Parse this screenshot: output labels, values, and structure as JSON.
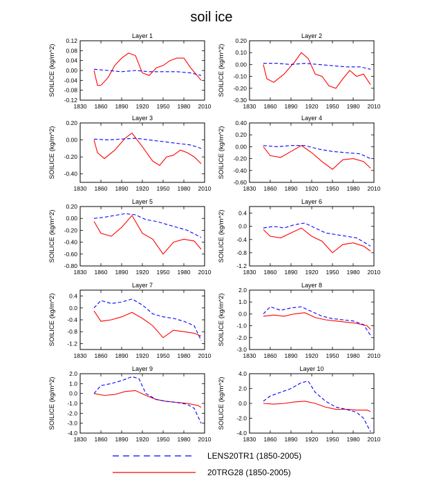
{
  "chart_data": {
    "type": "line",
    "title": "soil ice",
    "xlabel": "",
    "ylabel": "SOILICE  (kg/m^2)",
    "xlim": [
      1830,
      2010
    ],
    "xticks": [
      1830,
      1860,
      1890,
      1920,
      1950,
      1980,
      2010
    ],
    "legend": {
      "placement": "bottom",
      "entries": [
        {
          "name": "LENS20TR1 (1850-2005)",
          "color": "#0000ff",
          "style": "dashed"
        },
        {
          "name": "20TRG28 (1850-2005)",
          "color": "#ff0000",
          "style": "solid"
        }
      ]
    },
    "panels": [
      {
        "title": "Layer 1",
        "ylim": [
          -0.12,
          0.12
        ],
        "yticks": [
          "0.12",
          "0.08",
          "0.04",
          "0.00",
          "-0.04",
          "-0.08",
          "-0.12"
        ],
        "yvals": [
          0.12,
          0.08,
          0.04,
          0,
          -0.04,
          -0.08,
          -0.12
        ],
        "blue": {
          "x": [
            1850,
            1870,
            1890,
            1910,
            1930,
            1950,
            1970,
            1990,
            2005
          ],
          "y": [
            0.005,
            0,
            -0.005,
            0,
            -0.005,
            -0.005,
            -0.005,
            -0.01,
            -0.02
          ]
        },
        "red": {
          "x": [
            1850,
            1855,
            1860,
            1870,
            1880,
            1890,
            1900,
            1910,
            1920,
            1930,
            1940,
            1950,
            1960,
            1970,
            1980,
            1990,
            2005
          ],
          "y": [
            0,
            -0.06,
            -0.06,
            -0.03,
            0.02,
            0.05,
            0.07,
            0.06,
            -0.01,
            -0.02,
            0.01,
            0.02,
            0.04,
            0.05,
            0.05,
            0.01,
            -0.04
          ]
        }
      },
      {
        "title": "Layer 2",
        "ylim": [
          -0.3,
          0.2
        ],
        "yticks": [
          "0.20",
          "0.10",
          "0.00",
          "-0.10",
          "-0.20",
          "-0.30"
        ],
        "yvals": [
          0.2,
          0.1,
          0,
          -0.1,
          -0.2,
          -0.3
        ],
        "blue": {
          "x": [
            1850,
            1870,
            1890,
            1910,
            1930,
            1950,
            1970,
            1990,
            2005
          ],
          "y": [
            0.01,
            0.01,
            0,
            0.01,
            0,
            -0.01,
            -0.02,
            -0.02,
            -0.04
          ]
        },
        "red": {
          "x": [
            1850,
            1855,
            1865,
            1880,
            1895,
            1905,
            1915,
            1925,
            1935,
            1945,
            1955,
            1965,
            1975,
            1985,
            1995,
            2005
          ],
          "y": [
            0,
            -0.12,
            -0.15,
            -0.08,
            0.02,
            0.1,
            0.05,
            -0.08,
            -0.1,
            -0.18,
            -0.2,
            -0.12,
            -0.05,
            -0.1,
            -0.08,
            -0.17
          ]
        }
      },
      {
        "title": "Layer 3",
        "ylim": [
          -0.5,
          0.2
        ],
        "yticks": [
          "0.20",
          "0.00",
          "-0.20",
          "-0.40"
        ],
        "yvals": [
          0.2,
          0,
          -0.2,
          -0.4
        ],
        "blue": {
          "x": [
            1850,
            1870,
            1890,
            1910,
            1930,
            1950,
            1970,
            1990,
            2005
          ],
          "y": [
            0.01,
            0,
            0.01,
            0.02,
            0,
            -0.02,
            -0.04,
            -0.06,
            -0.1
          ]
        },
        "red": {
          "x": [
            1850,
            1855,
            1865,
            1880,
            1895,
            1905,
            1920,
            1935,
            1945,
            1955,
            1965,
            1975,
            1985,
            1995,
            2005
          ],
          "y": [
            0,
            -0.15,
            -0.22,
            -0.12,
            0.02,
            0.08,
            -0.08,
            -0.25,
            -0.3,
            -0.2,
            -0.18,
            -0.12,
            -0.15,
            -0.2,
            -0.28
          ]
        }
      },
      {
        "title": "Layer 4",
        "ylim": [
          -0.6,
          0.4
        ],
        "yticks": [
          "0.40",
          "0.20",
          "0.00",
          "-0.20",
          "-0.40",
          "-0.60"
        ],
        "yvals": [
          0.4,
          0.2,
          0,
          -0.2,
          -0.4,
          -0.6
        ],
        "blue": {
          "x": [
            1850,
            1870,
            1890,
            1910,
            1930,
            1950,
            1970,
            1990,
            2005
          ],
          "y": [
            0.02,
            0,
            0.02,
            0.02,
            -0.04,
            -0.08,
            -0.1,
            -0.12,
            -0.2
          ]
        },
        "red": {
          "x": [
            1850,
            1860,
            1875,
            1890,
            1905,
            1920,
            1935,
            1950,
            1965,
            1980,
            1995,
            2005
          ],
          "y": [
            0,
            -0.15,
            -0.18,
            -0.08,
            0.02,
            -0.1,
            -0.25,
            -0.38,
            -0.22,
            -0.2,
            -0.25,
            -0.36
          ]
        }
      },
      {
        "title": "Layer 5",
        "ylim": [
          -0.8,
          0.2
        ],
        "yticks": [
          "0.20",
          "0.00",
          "-0.20",
          "-0.40",
          "-0.60",
          "-0.80"
        ],
        "yvals": [
          0.2,
          0,
          -0.2,
          -0.4,
          -0.6,
          -0.8
        ],
        "blue": {
          "x": [
            1850,
            1865,
            1880,
            1895,
            1910,
            1925,
            1940,
            1955,
            1970,
            1985,
            2005
          ],
          "y": [
            0,
            0.02,
            0.05,
            0.08,
            0.06,
            -0.02,
            -0.05,
            -0.1,
            -0.15,
            -0.2,
            -0.32
          ]
        },
        "red": {
          "x": [
            1850,
            1860,
            1875,
            1890,
            1905,
            1920,
            1935,
            1950,
            1965,
            1980,
            1995,
            2005
          ],
          "y": [
            -0.05,
            -0.25,
            -0.3,
            -0.15,
            0.05,
            -0.25,
            -0.35,
            -0.6,
            -0.4,
            -0.35,
            -0.38,
            -0.52
          ]
        }
      },
      {
        "title": "Layer 6",
        "ylim": [
          -1.2,
          0.6
        ],
        "yticks": [
          "0.4",
          "0.0",
          "-0.4",
          "-0.8",
          "-1.2"
        ],
        "yvals": [
          0.4,
          0,
          -0.4,
          -0.8,
          -1.2
        ],
        "blue": {
          "x": [
            1850,
            1865,
            1880,
            1895,
            1910,
            1925,
            1940,
            1955,
            1970,
            1985,
            2005
          ],
          "y": [
            -0.05,
            0,
            -0.05,
            0.05,
            0.1,
            -0.05,
            -0.2,
            -0.25,
            -0.3,
            -0.35,
            -0.6
          ]
        },
        "red": {
          "x": [
            1850,
            1860,
            1875,
            1890,
            1905,
            1920,
            1935,
            1950,
            1965,
            1980,
            1995,
            2005
          ],
          "y": [
            -0.1,
            -0.3,
            -0.35,
            -0.2,
            -0.05,
            -0.3,
            -0.45,
            -0.8,
            -0.55,
            -0.5,
            -0.6,
            -0.75
          ]
        }
      },
      {
        "title": "Layer 7",
        "ylim": [
          -1.4,
          0.6
        ],
        "yticks": [
          "0.4",
          "0.0",
          "-0.4",
          "-0.8",
          "-1.2"
        ],
        "yvals": [
          0.4,
          0,
          -0.4,
          -0.8,
          -1.2
        ],
        "blue": {
          "x": [
            1850,
            1860,
            1875,
            1890,
            1905,
            1920,
            1935,
            1950,
            1965,
            1980,
            1995,
            2005
          ],
          "y": [
            0,
            0.25,
            0.15,
            0.2,
            0.3,
            0.1,
            -0.2,
            -0.3,
            -0.35,
            -0.45,
            -0.6,
            -1.1
          ]
        },
        "red": {
          "x": [
            1850,
            1860,
            1875,
            1890,
            1905,
            1920,
            1935,
            1950,
            1965,
            1980,
            1995,
            2005
          ],
          "y": [
            -0.1,
            -0.45,
            -0.4,
            -0.3,
            -0.15,
            -0.35,
            -0.6,
            -1.0,
            -0.75,
            -0.8,
            -0.85,
            -0.95
          ]
        }
      },
      {
        "title": "Layer 8",
        "ylim": [
          -3.0,
          2.0
        ],
        "yticks": [
          "2.0",
          "1.0",
          "0.0",
          "-1.0",
          "-2.0",
          "-3.0"
        ],
        "yvals": [
          2,
          1,
          0,
          -1,
          -2,
          -3
        ],
        "blue": {
          "x": [
            1850,
            1860,
            1875,
            1890,
            1905,
            1920,
            1935,
            1950,
            1965,
            1980,
            1995,
            2005
          ],
          "y": [
            0,
            0.6,
            0.3,
            0.5,
            0.6,
            0.2,
            -0.2,
            -0.4,
            -0.5,
            -0.6,
            -0.9,
            -1.8
          ]
        },
        "red": {
          "x": [
            1850,
            1865,
            1880,
            1895,
            1910,
            1925,
            1940,
            1955,
            1970,
            1985,
            2000,
            2005
          ],
          "y": [
            -0.2,
            -0.1,
            -0.2,
            0,
            0.1,
            -0.3,
            -0.5,
            -0.6,
            -0.7,
            -0.8,
            -1.0,
            -1.3
          ]
        }
      },
      {
        "title": "Layer 9",
        "ylim": [
          -4.0,
          2.0
        ],
        "yticks": [
          "2.0",
          "1.0",
          "0.0",
          "-1.0",
          "-2.0",
          "-3.0",
          "-4.0"
        ],
        "yvals": [
          2,
          1,
          0,
          -1,
          -2,
          -3,
          -4
        ],
        "blue": {
          "x": [
            1850,
            1860,
            1875,
            1890,
            1905,
            1915,
            1925,
            1940,
            1955,
            1970,
            1985,
            1995,
            2005
          ],
          "y": [
            0,
            0.8,
            1.0,
            1.3,
            1.7,
            1.5,
            0,
            -0.6,
            -0.8,
            -0.9,
            -1.1,
            -1.5,
            -3.0
          ]
        },
        "red": {
          "x": [
            1850,
            1865,
            1880,
            1895,
            1910,
            1925,
            1940,
            1955,
            1970,
            1985,
            2000,
            2005
          ],
          "y": [
            0,
            -0.2,
            -0.1,
            0.2,
            0.3,
            -0.2,
            -0.6,
            -0.8,
            -0.9,
            -1.0,
            -1.2,
            -1.4
          ]
        }
      },
      {
        "title": "Layer 10",
        "ylim": [
          -4.0,
          4.0
        ],
        "yticks": [
          "4.0",
          "2.0",
          "0.0",
          "-2.0",
          "-4.0"
        ],
        "yvals": [
          4,
          2,
          0,
          -2,
          -4
        ],
        "blue": {
          "x": [
            1850,
            1860,
            1875,
            1890,
            1905,
            1915,
            1925,
            1940,
            1955,
            1970,
            1985,
            1995,
            2005
          ],
          "y": [
            0.3,
            1.0,
            1.5,
            2.0,
            2.8,
            3.0,
            1.5,
            0.3,
            -0.5,
            -0.8,
            -1.2,
            -2.0,
            -3.8
          ]
        },
        "red": {
          "x": [
            1850,
            1865,
            1880,
            1895,
            1910,
            1925,
            1940,
            1955,
            1970,
            1985,
            2000,
            2005
          ],
          "y": [
            0,
            -0.1,
            0,
            0.2,
            0.3,
            0,
            -0.5,
            -0.8,
            -0.8,
            -0.9,
            -0.9,
            -1.1
          ]
        }
      }
    ]
  }
}
